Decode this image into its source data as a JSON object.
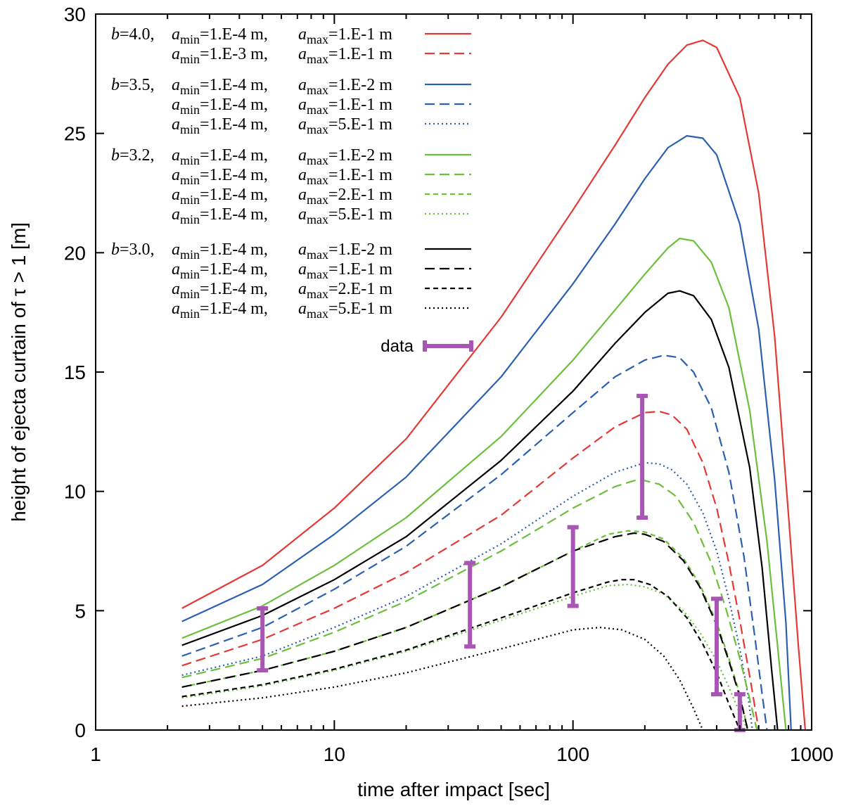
{
  "chart_data": {
    "type": "line",
    "xscale": "log",
    "xlim": [
      1,
      1000
    ],
    "ylim": [
      0,
      30
    ],
    "xticks": [
      1,
      10,
      100,
      1000
    ],
    "xtick_labels": [
      "1",
      "10",
      "100",
      "1000"
    ],
    "yticks": [
      0,
      5,
      10,
      15,
      20,
      25,
      30
    ],
    "ytick_labels": [
      "0",
      "5",
      "10",
      "15",
      "20",
      "25",
      "30"
    ],
    "xlabel": "time after impact [sec]",
    "ylabel": "height of ejecta curtain of τ > 1 [m]",
    "legend_position": "top-left",
    "series": [
      {
        "name": "b=4.0, amin=1.E-4 m, amax=1.E-1 m",
        "group": "b=4.0,",
        "amin": "=1.E-4 m,",
        "amax": "=1.E-1 m",
        "color": "#e53935",
        "dash": "solid",
        "x": [
          2.3,
          5,
          10,
          20,
          50,
          100,
          150,
          200,
          250,
          300,
          350,
          400,
          500,
          600,
          700,
          800,
          880,
          940
        ],
        "y": [
          5.1,
          6.9,
          9.3,
          12.2,
          17.3,
          21.8,
          24.5,
          26.5,
          27.9,
          28.7,
          28.9,
          28.6,
          26.5,
          22.5,
          16.5,
          9.0,
          3.5,
          0
        ]
      },
      {
        "name": "amin=1.E-3 m, amax=1.E-1 m",
        "group": "",
        "amin": "=1.E-3 m,",
        "amax": "=1.E-1 m",
        "color": "#e53935",
        "dash": "dashed",
        "x": [
          2.3,
          5,
          10,
          20,
          50,
          100,
          150,
          200,
          230,
          260,
          300,
          350,
          400,
          450,
          500,
          560,
          600
        ],
        "y": [
          2.7,
          3.8,
          5.1,
          6.6,
          9.0,
          11.4,
          12.7,
          13.3,
          13.35,
          13.2,
          12.6,
          11.2,
          9.3,
          7.0,
          4.6,
          1.8,
          0
        ]
      },
      {
        "name": "b=3.5, amin=1.E-4 m, amax=1.E-2 m",
        "group": "b=3.5,",
        "amin": "=1.E-4 m,",
        "amax": "=1.E-2 m",
        "color": "#2b5fb0",
        "dash": "solid",
        "x": [
          2.3,
          5,
          10,
          20,
          50,
          100,
          150,
          200,
          250,
          300,
          350,
          400,
          500,
          600,
          700,
          780,
          820
        ],
        "y": [
          4.55,
          6.1,
          8.2,
          10.6,
          14.8,
          18.7,
          21.2,
          23.1,
          24.4,
          24.9,
          24.8,
          24.1,
          21.2,
          16.8,
          10.5,
          4.5,
          0
        ]
      },
      {
        "name": "amin=1.E-4 m, amax=1.E-1 m",
        "group": "",
        "amin": "=1.E-4 m,",
        "amax": "=1.E-1 m",
        "color": "#2b5fb0",
        "dash": "dashed",
        "x": [
          2.3,
          5,
          10,
          20,
          50,
          100,
          150,
          200,
          240,
          280,
          320,
          380,
          450,
          520,
          580,
          620,
          650
        ],
        "y": [
          3.1,
          4.3,
          5.9,
          7.7,
          10.7,
          13.3,
          14.8,
          15.5,
          15.7,
          15.6,
          15.0,
          13.5,
          10.8,
          7.3,
          3.8,
          1.5,
          0
        ]
      },
      {
        "name": "amin=1.E-4 m, amax=5.E-1 m",
        "group": "",
        "amin": "=1.E-4 m,",
        "amax": "=5.E-1 m",
        "color": "#2b5fb0",
        "dash": "dotted",
        "x": [
          2.3,
          5,
          10,
          20,
          50,
          100,
          150,
          200,
          230,
          260,
          300,
          350,
          400,
          450,
          500,
          540,
          565
        ],
        "y": [
          2.3,
          3.1,
          4.3,
          5.6,
          7.8,
          9.8,
          10.8,
          11.2,
          11.15,
          10.9,
          10.3,
          9.1,
          7.5,
          5.5,
          3.4,
          1.5,
          0
        ]
      },
      {
        "name": "b=3.2, amin=1.E-4 m, amax=1.E-2 m",
        "group": "b=3.2,",
        "amin": "=1.E-4 m,",
        "amax": "=1.E-2 m",
        "color": "#6cbf3c",
        "dash": "solid",
        "x": [
          2.3,
          5,
          10,
          20,
          50,
          100,
          150,
          200,
          250,
          280,
          320,
          380,
          450,
          550,
          650,
          720,
          780
        ],
        "y": [
          3.85,
          5.2,
          6.9,
          8.9,
          12.3,
          15.5,
          17.6,
          19.1,
          20.2,
          20.6,
          20.5,
          19.6,
          17.7,
          13.4,
          7.9,
          3.5,
          0
        ]
      },
      {
        "name": "amin=1.E-4 m, amax=1.E-1 m",
        "group": "",
        "amin": "=1.E-4 m,",
        "amax": "=1.E-1 m",
        "color": "#6cbf3c",
        "dash": "dashed",
        "x": [
          2.3,
          5,
          10,
          20,
          50,
          100,
          150,
          180,
          200,
          230,
          270,
          320,
          380,
          440,
          500,
          550,
          590
        ],
        "y": [
          2.2,
          3.0,
          4.1,
          5.4,
          7.5,
          9.3,
          10.2,
          10.45,
          10.45,
          10.3,
          9.8,
          8.7,
          7.0,
          5.0,
          3.0,
          1.3,
          0
        ]
      },
      {
        "name": "amin=1.E-4 m, amax=2.E-1 m",
        "group": "",
        "amin": "=1.E-4 m,",
        "amax": "=2.E-1 m",
        "color": "#6cbf3c",
        "dash": "short-dashed",
        "x": [
          2.3,
          5,
          10,
          20,
          50,
          100,
          140,
          170,
          200,
          240,
          290,
          340,
          400,
          450,
          500,
          540
        ],
        "y": [
          1.8,
          2.5,
          3.3,
          4.3,
          6.0,
          7.5,
          8.2,
          8.35,
          8.3,
          8.0,
          7.2,
          6.1,
          4.5,
          3.0,
          1.5,
          0
        ]
      },
      {
        "name": "amin=1.E-4 m, amax=5.E-1 m",
        "group": "",
        "amin": "=1.E-4 m,",
        "amax": "=5.E-1 m",
        "color": "#6cbf3c",
        "dash": "dotted",
        "x": [
          2.3,
          5,
          10,
          20,
          50,
          100,
          140,
          170,
          200,
          240,
          290,
          340,
          400,
          450,
          500,
          540
        ],
        "y": [
          1.35,
          1.85,
          2.5,
          3.3,
          4.6,
          5.6,
          6.05,
          6.1,
          6.0,
          5.7,
          5.0,
          4.1,
          2.9,
          1.8,
          0.7,
          0
        ]
      },
      {
        "name": "b=3.0, amin=1.E-4 m, amax=1.E-2 m",
        "group": "b=3.0,",
        "amin": "=1.E-4 m,",
        "amax": "=1.E-2 m",
        "color": "#000000",
        "dash": "solid",
        "x": [
          2.3,
          5,
          10,
          20,
          50,
          100,
          150,
          200,
          250,
          280,
          320,
          380,
          450,
          550,
          620,
          680,
          720
        ],
        "y": [
          3.55,
          4.8,
          6.3,
          8.1,
          11.3,
          14.2,
          16.2,
          17.5,
          18.3,
          18.4,
          18.2,
          17.2,
          15.2,
          11.0,
          6.8,
          2.5,
          0
        ]
      },
      {
        "name": "amin=1.E-4 m, amax=1.E-1 m",
        "group": "",
        "amin": "=1.E-4 m,",
        "amax": "=1.E-1 m",
        "color": "#000000",
        "dash": "dashed",
        "x": [
          2.3,
          5,
          10,
          20,
          50,
          100,
          150,
          180,
          200,
          240,
          290,
          340,
          400,
          450,
          500,
          540
        ],
        "y": [
          1.8,
          2.5,
          3.3,
          4.3,
          6.0,
          7.5,
          8.1,
          8.25,
          8.2,
          7.9,
          7.1,
          6.0,
          4.4,
          2.9,
          1.4,
          0
        ]
      },
      {
        "name": "amin=1.E-4 m, amax=2.E-1 m",
        "group": "",
        "amin": "=1.E-4 m,",
        "amax": "=2.E-1 m",
        "color": "#000000",
        "dash": "short-dashed",
        "x": [
          2.3,
          5,
          10,
          20,
          50,
          100,
          140,
          160,
          180,
          210,
          250,
          300,
          350,
          400,
          450,
          500
        ],
        "y": [
          1.4,
          1.9,
          2.55,
          3.35,
          4.7,
          5.75,
          6.2,
          6.3,
          6.3,
          6.1,
          5.6,
          4.7,
          3.6,
          2.4,
          1.1,
          0
        ]
      },
      {
        "name": "amin=1.E-4 m, amax=5.E-1 m",
        "group": "",
        "amin": "=1.E-4 m,",
        "amax": "=5.E-1 m",
        "color": "#000000",
        "dash": "dotted",
        "x": [
          2.3,
          5,
          10,
          20,
          50,
          100,
          130,
          160,
          200,
          240,
          280,
          320,
          350
        ],
        "y": [
          1.0,
          1.35,
          1.8,
          2.4,
          3.4,
          4.2,
          4.3,
          4.2,
          3.8,
          3.1,
          2.1,
          0.9,
          0
        ]
      }
    ],
    "data": {
      "name": "data",
      "color": "#a855b5",
      "points": [
        {
          "x": 5,
          "y_low": 2.5,
          "y_high": 5.1
        },
        {
          "x": 37,
          "y_low": 3.5,
          "y_high": 7.0
        },
        {
          "x": 100,
          "y_low": 5.2,
          "y_high": 8.5
        },
        {
          "x": 195,
          "y_low": 8.9,
          "y_high": 14.0
        },
        {
          "x": 400,
          "y_low": 1.5,
          "y_high": 5.5
        },
        {
          "x": 500,
          "y_low": 0,
          "y_high": 1.5
        }
      ]
    }
  }
}
